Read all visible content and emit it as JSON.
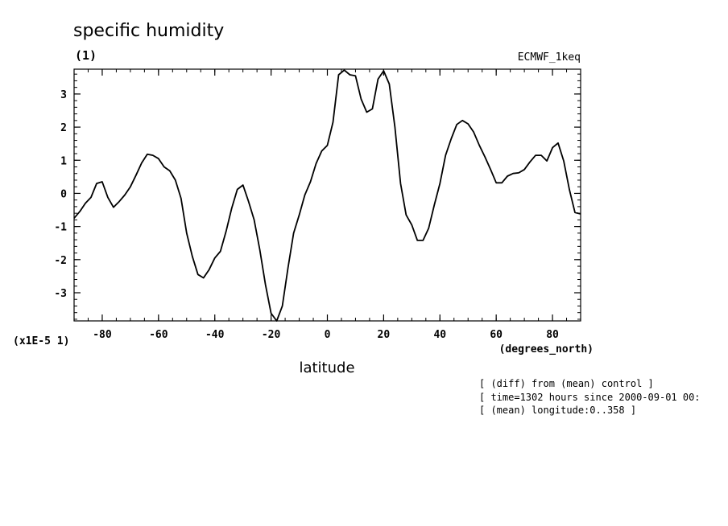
{
  "chart_data": {
    "type": "line",
    "title": "specific humidity",
    "units": "(1)",
    "dataset": "ECMWF_1keq",
    "xlabel": "latitude",
    "x_units": "(degrees_north)",
    "y_scale_label": "(x1E-5 1)",
    "xlim": [
      -90,
      90
    ],
    "ylim": [
      -3.85,
      3.75
    ],
    "x_ticks": [
      -80,
      -60,
      -40,
      -20,
      0,
      20,
      40,
      60,
      80
    ],
    "x_tick_labels": [
      "-80",
      "-60",
      "-40",
      "-20",
      "0",
      "20",
      "40",
      "60",
      "80"
    ],
    "y_ticks": [
      -3,
      -2,
      -1,
      0,
      1,
      2,
      3
    ],
    "y_tick_labels": [
      "-3",
      "-2",
      "-1",
      "0",
      "1",
      "2",
      "3"
    ],
    "annotations": [
      "[ (diff) from (mean) control ]",
      "[ time=1302 hours since 2000-09-01 00:",
      "[ (mean) longitude:0..358 ]"
    ],
    "series": [
      {
        "name": "specific humidity",
        "x": [
          -90,
          -88,
          -86,
          -84,
          -82,
          -80,
          -78,
          -76,
          -74,
          -72,
          -70,
          -68,
          -66,
          -64,
          -62,
          -60,
          -58,
          -56,
          -54,
          -52,
          -50,
          -48,
          -46,
          -44,
          -42,
          -40,
          -38,
          -36,
          -34,
          -32,
          -30,
          -28,
          -26,
          -24,
          -22,
          -20,
          -18,
          -16,
          -14,
          -12,
          -10,
          -8,
          -6,
          -4,
          -2,
          0,
          2,
          4,
          6,
          8,
          10,
          12,
          14,
          16,
          18,
          20,
          22,
          24,
          26,
          28,
          30,
          32,
          34,
          36,
          38,
          40,
          42,
          44,
          46,
          48,
          50,
          52,
          54,
          56,
          58,
          60,
          62,
          64,
          66,
          68,
          70,
          72,
          74,
          76,
          78,
          80,
          82,
          84,
          86,
          88,
          90
        ],
        "values": [
          -0.75,
          -0.55,
          -0.3,
          -0.12,
          0.3,
          0.35,
          -0.12,
          -0.42,
          -0.25,
          -0.05,
          0.2,
          0.55,
          0.92,
          1.18,
          1.15,
          1.05,
          0.8,
          0.68,
          0.4,
          -0.15,
          -1.2,
          -1.9,
          -2.45,
          -2.55,
          -2.3,
          -1.95,
          -1.75,
          -1.15,
          -0.45,
          0.12,
          0.25,
          -0.25,
          -0.8,
          -1.7,
          -2.75,
          -3.62,
          -3.85,
          -3.4,
          -2.25,
          -1.2,
          -0.65,
          -0.05,
          0.35,
          0.9,
          1.28,
          1.45,
          2.15,
          3.58,
          3.72,
          3.58,
          3.55,
          2.85,
          2.45,
          2.55,
          3.45,
          3.7,
          3.3,
          2.0,
          0.3,
          -0.65,
          -0.95,
          -1.42,
          -1.42,
          -1.05,
          -0.35,
          0.3,
          1.15,
          1.65,
          2.08,
          2.2,
          2.1,
          1.85,
          1.45,
          1.1,
          0.72,
          0.32,
          0.32,
          0.52,
          0.6,
          0.62,
          0.72,
          0.95,
          1.15,
          1.15,
          0.98,
          1.38,
          1.52,
          0.98,
          0.12,
          -0.58,
          -0.62
        ]
      }
    ]
  }
}
